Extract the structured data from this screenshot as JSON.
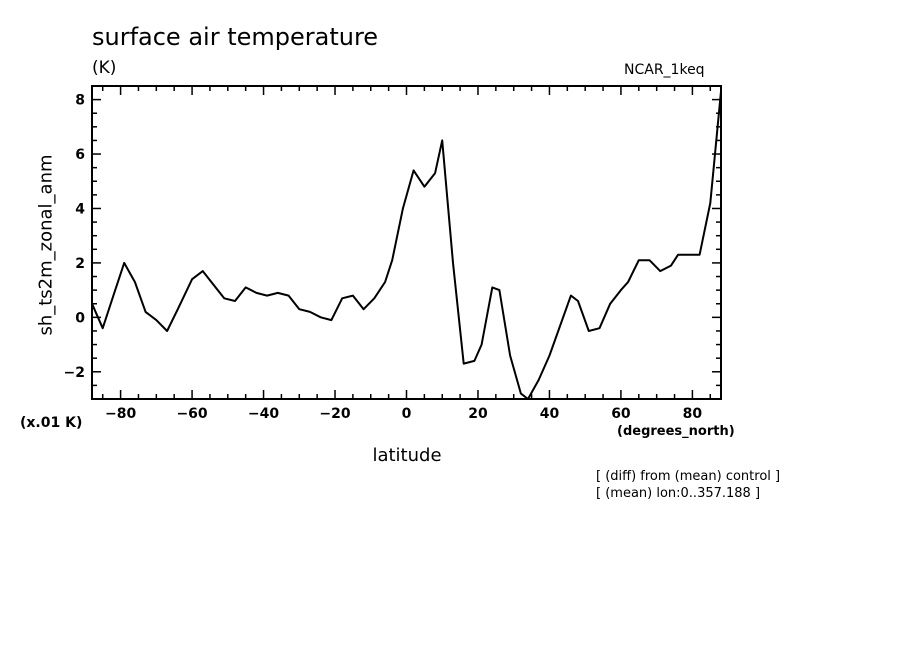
{
  "header": {
    "title": "surface air temperature",
    "units": "(K)",
    "dataset": "NCAR_1keq"
  },
  "annotations": {
    "scale_note": "(x.01 K)",
    "x_units": "(degrees_north)",
    "note1": "[ (diff) from (mean) control ]",
    "note2": "[ (mean) lon:0..357.188 ]"
  },
  "chart_data": {
    "type": "line",
    "title": "surface air temperature",
    "xlabel": "latitude",
    "ylabel": "sh_ts2m_zonal_anm",
    "xlim": [
      -88,
      88
    ],
    "ylim": [
      -3,
      8.5
    ],
    "x_ticks": [
      -80,
      -60,
      -40,
      -20,
      0,
      20,
      40,
      60,
      80
    ],
    "y_ticks": [
      -2,
      0,
      2,
      4,
      6,
      8
    ],
    "grid": false,
    "color": "#000000",
    "series": [
      {
        "x": [
          -88,
          -85,
          -82,
          -79,
          -76,
          -73,
          -70,
          -67,
          -64,
          -60,
          -57,
          -54,
          -51,
          -48,
          -45,
          -42,
          -39,
          -36,
          -33,
          -30,
          -27,
          -24,
          -21,
          -18,
          -15,
          -12,
          -9,
          -6,
          -4,
          -1,
          2,
          5,
          8,
          10,
          13,
          16,
          19,
          21,
          24,
          26,
          29,
          32,
          34,
          37,
          40,
          43,
          46,
          48,
          51,
          54,
          57,
          60,
          62,
          65,
          68,
          71,
          74,
          76,
          79,
          82,
          85,
          88
        ],
        "y": [
          0.5,
          -0.4,
          0.8,
          2.0,
          1.3,
          0.2,
          -0.1,
          -0.5,
          0.3,
          1.4,
          1.7,
          1.2,
          0.7,
          0.6,
          1.1,
          0.9,
          0.8,
          0.9,
          0.8,
          0.3,
          0.2,
          0.0,
          -0.1,
          0.7,
          0.8,
          0.3,
          0.7,
          1.3,
          2.1,
          4.0,
          5.4,
          4.8,
          5.3,
          6.5,
          2.0,
          -1.7,
          -1.6,
          -1.0,
          1.1,
          1.0,
          -1.4,
          -2.8,
          -3.0,
          -2.3,
          -1.4,
          -0.3,
          0.8,
          0.6,
          -0.5,
          -0.4,
          0.5,
          1.0,
          1.3,
          2.1,
          2.1,
          1.7,
          1.9,
          2.3,
          2.3,
          2.3,
          4.2,
          8.3
        ]
      }
    ]
  }
}
